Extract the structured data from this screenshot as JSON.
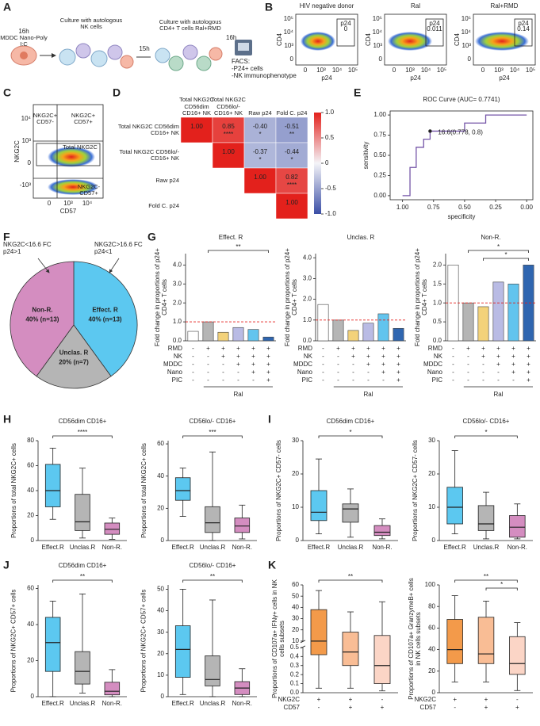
{
  "figure": {
    "panels": [
      "A",
      "B",
      "C",
      "D",
      "E",
      "F",
      "G",
      "H",
      "I",
      "J",
      "K"
    ],
    "diagram": {
      "step1_time": "16h",
      "step1": "MDDC Nano-Poly I:C",
      "step2": "Culture with autologous NK cells",
      "step2_time": "15h",
      "step3": "Culture with autologous CD4+ T cells Ral+RMD",
      "step3_time": "16h",
      "readout": [
        "FACS:",
        "-P24+ cells",
        "-NK immunophenotype"
      ]
    },
    "flow_plots": {
      "x_label": "p24",
      "y_label": "CD4",
      "xticks": [
        "0",
        "10³",
        "10⁴",
        "10⁵"
      ],
      "yticks": [
        "10⁵",
        "10⁴",
        "10³",
        "0"
      ],
      "plots": [
        {
          "title": "HIV negative donor",
          "gate": "p24",
          "value": "0"
        },
        {
          "title": "Ral",
          "gate": "p24",
          "value": "0.011"
        },
        {
          "title": "Ral+RMD",
          "gate": "p24",
          "value": "0.14"
        }
      ]
    },
    "quadrant_plot": {
      "x_label": "CD57",
      "y_label": "NKG2C",
      "quadrants": [
        "NKG2C+ CD57-",
        "NKG2C+ CD57+",
        "Total NKG2C",
        "NKG2C- CD57+"
      ],
      "xticks": [
        "0",
        "10³",
        "10⁴"
      ],
      "yticks": [
        "10⁴",
        "10³",
        "0",
        "-10³"
      ]
    }
  },
  "chart_data": [
    {
      "type": "heatmap",
      "x_labels": [
        "Total NKG2C CD56dim CD16+ NK",
        "Total NKG2C CD56lo/- CD16+ NK",
        "Raw p24",
        "Fold C. p24"
      ],
      "y_labels": [
        "Total NKG2C CD56dim CD16+ NK",
        "Total NKG2C CD56lo/- CD16+ NK",
        "Raw p24",
        "Fold C. p24"
      ],
      "values": [
        [
          1,
          0.85,
          -0.4,
          -0.51
        ],
        [
          null,
          1,
          -0.37,
          -0.44
        ],
        [
          null,
          null,
          1,
          0.82
        ],
        [
          null,
          null,
          null,
          1
        ]
      ],
      "value_labels": [
        [
          "1.00",
          "0.85",
          "-0.40",
          "-0.51"
        ],
        [
          null,
          "1.00",
          "-0.37",
          "-0.44"
        ],
        [
          null,
          null,
          "1.00",
          "0.82"
        ],
        [
          null,
          null,
          null,
          "1.00"
        ]
      ],
      "stars": [
        [
          null,
          "****",
          "*",
          "**"
        ],
        [
          null,
          null,
          "*",
          "*"
        ],
        [
          null,
          null,
          null,
          "****"
        ],
        [
          null,
          null,
          null,
          null
        ]
      ],
      "zlim": [
        -1,
        1
      ],
      "colors": [
        "#3a4ea6",
        "#f4f4f8",
        "#e3211c"
      ],
      "zticks": [
        {
          "value": 1,
          "label": "1.0"
        },
        0.5,
        0,
        -0.5,
        {
          "value": -1,
          "label": "-1.0"
        }
      ]
    },
    {
      "type": "line",
      "title": "ROC Curve (AUC= 0.7741)",
      "x_label": "specificity",
      "y_label": "sensitivity",
      "x": [
        1.0,
        0.94,
        0.94,
        0.89,
        0.89,
        0.83,
        0.83,
        0.778,
        0.778,
        0.5,
        0.5,
        0.33,
        0.33,
        0.0
      ],
      "values": [
        0,
        0,
        0.35,
        0.35,
        0.6,
        0.6,
        0.7,
        0.7,
        0.8,
        0.8,
        0.9,
        0.9,
        1.0,
        1.0
      ],
      "color": "#7556a8",
      "xlim": [
        1.1,
        -0.05
      ],
      "ylim": [
        -0.05,
        1.05
      ],
      "xticks": [
        {
          "value": 1,
          "label": "1.00"
        },
        0.75,
        {
          "value": 0.5,
          "label": "0.50"
        },
        0.25,
        {
          "value": 0,
          "label": "0.00"
        }
      ],
      "yticks": [
        {
          "value": 0,
          "label": "0.00"
        },
        0.25,
        {
          "value": 0.5,
          "label": "0.50"
        },
        0.75,
        {
          "value": 1,
          "label": "1.00"
        }
      ],
      "point": [
        0.778,
        0.8
      ],
      "annotation": "16.6(0.778, 0.8)"
    },
    {
      "type": "pie",
      "categories": [
        "Effect. R",
        "Unclas. R",
        "Non-R."
      ],
      "values": [
        40,
        20,
        40
      ],
      "value_labels": [
        "40% (n=13)",
        "20% (n=7)",
        "40% (n=13)"
      ],
      "colors": [
        "#5cc8f0",
        "#b5b5b5",
        "#d48dc0"
      ],
      "annotations": [
        "NKG2C<16.6 FC p24>1",
        "NKG2C>16.6 FC p24<1"
      ]
    },
    {
      "type": "bar",
      "title": "Effect. R",
      "ylabel": "Fold change in proportions of p24+ CD4+ T cells",
      "values": [
        0.5,
        1.0,
        0.45,
        0.7,
        0.6,
        0.2
      ],
      "colors": [
        "#ffffff",
        "#b5b5b5",
        "#f3d27a",
        "#b9bbe4",
        "#62c4ee",
        "#2f66b0"
      ],
      "ylim": [
        0,
        4.6
      ],
      "yticks": [
        {
          "value": 0,
          "label": "0.0"
        },
        {
          "value": 1,
          "label": "1.0"
        },
        {
          "value": 2,
          "label": "2.0"
        },
        {
          "value": 3,
          "label": "3.0"
        },
        {
          "value": 4,
          "label": "4.0"
        }
      ],
      "reference": 1,
      "conditions": [
        {
          "name": "RMD",
          "signs": [
            "-",
            "+",
            "+",
            "+",
            "+",
            "+"
          ]
        },
        {
          "name": "NK",
          "signs": [
            "-",
            "-",
            "+",
            "+",
            "+",
            "+"
          ]
        },
        {
          "name": "MDDC",
          "signs": [
            "-",
            "-",
            "-",
            "+",
            "+",
            "+"
          ]
        },
        {
          "name": "Nano",
          "signs": [
            "-",
            "-",
            "-",
            "-",
            "+",
            "+"
          ]
        },
        {
          "name": "PIC",
          "signs": [
            "-",
            "-",
            "-",
            "-",
            "-",
            "+"
          ]
        }
      ],
      "footer": "Ral",
      "significance": [
        {
          "label": "**",
          "pair": [
            1,
            5
          ]
        }
      ]
    },
    {
      "type": "bar",
      "title": "Unclas. R",
      "ylabel": "Fold change in proportions of p24+ CD4+ T cells",
      "values": [
        1.75,
        1.0,
        0.5,
        0.85,
        1.3,
        0.6
      ],
      "colors": [
        "#ffffff",
        "#b5b5b5",
        "#f3d27a",
        "#b9bbe4",
        "#62c4ee",
        "#2f66b0"
      ],
      "ylim": [
        0,
        4.2
      ],
      "yticks": [
        {
          "value": 0,
          "label": "0.0"
        },
        {
          "value": 1,
          "label": "1.0"
        },
        {
          "value": 2,
          "label": "2.0"
        },
        {
          "value": 3,
          "label": "3.0"
        },
        {
          "value": 4,
          "label": "4.0"
        }
      ],
      "reference": 1,
      "conditions": [
        {
          "name": "RMD",
          "signs": [
            "-",
            "+",
            "+",
            "+",
            "+",
            "+"
          ]
        },
        {
          "name": "NK",
          "signs": [
            "-",
            "-",
            "+",
            "+",
            "+",
            "+"
          ]
        },
        {
          "name": "MDDC",
          "signs": [
            "-",
            "-",
            "-",
            "+",
            "+",
            "+"
          ]
        },
        {
          "name": "Nano",
          "signs": [
            "-",
            "-",
            "-",
            "-",
            "+",
            "+"
          ]
        },
        {
          "name": "PIC",
          "signs": [
            "-",
            "-",
            "-",
            "-",
            "-",
            "+"
          ]
        }
      ],
      "footer": "Ral",
      "significance": []
    },
    {
      "type": "bar",
      "title": "Non-R.",
      "ylabel": "Fold change in proportions of p24+ CD4+ T cells",
      "values": [
        2.0,
        1.0,
        0.9,
        1.55,
        1.5,
        2.0
      ],
      "colors": [
        "#ffffff",
        "#b5b5b5",
        "#f3d27a",
        "#b9bbe4",
        "#62c4ee",
        "#2f66b0"
      ],
      "ylim": [
        0,
        2.3
      ],
      "yticks": [
        {
          "value": 0,
          "label": "0.0"
        },
        0.5,
        {
          "value": 1,
          "label": "1.0"
        },
        1.5,
        {
          "value": 2,
          "label": "2.0"
        }
      ],
      "reference": 1,
      "conditions": [
        {
          "name": "RMD",
          "signs": [
            "-",
            "+",
            "+",
            "+",
            "+",
            "+"
          ]
        },
        {
          "name": "NK",
          "signs": [
            "-",
            "-",
            "+",
            "+",
            "+",
            "+"
          ]
        },
        {
          "name": "MDDC",
          "signs": [
            "-",
            "-",
            "-",
            "+",
            "+",
            "+"
          ]
        },
        {
          "name": "Nano",
          "signs": [
            "-",
            "-",
            "-",
            "-",
            "+",
            "+"
          ]
        },
        {
          "name": "PIC",
          "signs": [
            "-",
            "-",
            "-",
            "-",
            "-",
            "+"
          ]
        }
      ],
      "footer": "Ral",
      "significance": [
        {
          "label": "*",
          "pair": [
            1,
            5
          ]
        },
        {
          "label": "*",
          "pair": [
            2,
            5
          ]
        }
      ]
    },
    {
      "type": "box",
      "title": "CD56dim CD16+",
      "ylabel": "Proportions of total NKG2C+ cells",
      "categories": [
        "Effect.R",
        "Unclas.R",
        "Non-R."
      ],
      "colors": [
        "#5cc8f0",
        "#b5b5b5",
        "#d48dc0"
      ],
      "boxes": [
        {
          "min": 17,
          "q1": 27,
          "median": 40,
          "q3": 61,
          "max": 74
        },
        {
          "min": 2,
          "q1": 8,
          "median": 15,
          "q3": 37,
          "max": 58
        },
        {
          "min": 1,
          "q1": 5,
          "median": 9,
          "q3": 14,
          "max": 18
        }
      ],
      "ylim": [
        0,
        80
      ],
      "yticks": [
        0,
        20,
        40,
        60,
        80
      ],
      "significance": [
        {
          "label": "****",
          "pair": [
            0,
            2
          ]
        }
      ]
    },
    {
      "type": "box",
      "title": "CD56lo/- CD16+",
      "ylabel": "Proportions of total NKG2C+ cells",
      "categories": [
        "Effect.R",
        "Unclas.R",
        "Non-R."
      ],
      "colors": [
        "#5cc8f0",
        "#b5b5b5",
        "#d48dc0"
      ],
      "boxes": [
        {
          "min": 15,
          "q1": 25,
          "median": 31,
          "q3": 39,
          "max": 45
        },
        {
          "min": 0,
          "q1": 5,
          "median": 11,
          "q3": 21,
          "max": 55
        },
        {
          "min": 1,
          "q1": 5,
          "median": 9,
          "q3": 14,
          "max": 22
        }
      ],
      "ylim": [
        0,
        62
      ],
      "yticks": [
        0,
        20,
        40,
        60
      ],
      "significance": [
        {
          "label": "***",
          "pair": [
            0,
            2
          ]
        }
      ]
    },
    {
      "type": "box",
      "title": "CD56dim CD16+",
      "ylabel": "Proportions of NKG2C+ CD57- cells",
      "categories": [
        "Effect.R",
        "Unclas.R",
        "Non-R."
      ],
      "colors": [
        "#5cc8f0",
        "#b5b5b5",
        "#d48dc0"
      ],
      "boxes": [
        {
          "min": 2,
          "q1": 6,
          "median": 8.5,
          "q3": 15,
          "max": 24.5
        },
        {
          "min": 1,
          "q1": 5.5,
          "median": 9.5,
          "q3": 11,
          "max": 15.5
        },
        {
          "min": 0.5,
          "q1": 1.5,
          "median": 2.5,
          "q3": 4.5,
          "max": 6.5
        }
      ],
      "ylim": [
        0,
        30
      ],
      "yticks": [
        0,
        10,
        20,
        30
      ],
      "significance": [
        {
          "label": "*",
          "pair": [
            0,
            2
          ]
        }
      ]
    },
    {
      "type": "box",
      "title": "CD56lo/- CD16+",
      "ylabel": "Proportions of NKG2C+ CD57- cells",
      "categories": [
        "Effect.R",
        "Unclas.R",
        "Non-R."
      ],
      "colors": [
        "#5cc8f0",
        "#b5b5b5",
        "#d48dc0"
      ],
      "boxes": [
        {
          "min": 2,
          "q1": 5,
          "median": 10,
          "q3": 16,
          "max": 27
        },
        {
          "min": 0.5,
          "q1": 3,
          "median": 5,
          "q3": 10.5,
          "max": 14.5
        },
        {
          "min": 0.5,
          "q1": 1,
          "median": 4,
          "q3": 7.5,
          "max": 11
        }
      ],
      "ylim": [
        0,
        30
      ],
      "yticks": [
        0,
        10,
        20,
        30
      ],
      "significance": [
        {
          "label": "*",
          "pair": [
            0,
            2
          ]
        }
      ]
    },
    {
      "type": "box",
      "title": "CD56dim CD16+",
      "ylabel": "Proportions of NKG2C+ CD57+ cells",
      "categories": [
        "Effect.R",
        "Unclas.R",
        "Non-R."
      ],
      "colors": [
        "#5cc8f0",
        "#b5b5b5",
        "#d48dc0"
      ],
      "boxes": [
        {
          "min": 0,
          "q1": 14,
          "median": 30,
          "q3": 44,
          "max": 53
        },
        {
          "min": 2,
          "q1": 7,
          "median": 14,
          "q3": 25,
          "max": 57
        },
        {
          "min": 0,
          "q1": 1,
          "median": 3,
          "q3": 8,
          "max": 15
        }
      ],
      "ylim": [
        0,
        62
      ],
      "yticks": [
        0,
        20,
        40,
        60
      ],
      "significance": [
        {
          "label": "**",
          "pair": [
            0,
            2
          ]
        }
      ]
    },
    {
      "type": "box",
      "title": "CD56lo/- CD16+",
      "ylabel": "Proportions of NKG2C+ CD57+ cells",
      "categories": [
        "Effect.R",
        "Unclas.R",
        "Non-R."
      ],
      "colors": [
        "#5cc8f0",
        "#b5b5b5",
        "#d48dc0"
      ],
      "boxes": [
        {
          "min": 1,
          "q1": 9,
          "median": 22,
          "q3": 33,
          "max": 50
        },
        {
          "min": 0,
          "q1": 5,
          "median": 8,
          "q3": 19,
          "max": 45
        },
        {
          "min": 0,
          "q1": 1,
          "median": 4,
          "q3": 7,
          "max": 13
        }
      ],
      "ylim": [
        0,
        52
      ],
      "yticks": [
        0,
        10,
        20,
        30,
        40,
        50
      ],
      "significance": [
        {
          "label": "**",
          "pair": [
            0,
            2
          ]
        }
      ]
    },
    {
      "type": "box",
      "ylabel": "Proportions of CD107a+ IFNγ+ cells in NK cells subsets",
      "colors": [
        "#f39a4a",
        "#f9bd95",
        "#fbd5c6"
      ],
      "rows": [
        {
          "name": "NKG2C",
          "signs": [
            "+",
            "+",
            "-"
          ]
        },
        {
          "name": "CD57",
          "signs": [
            "-",
            "+",
            "+"
          ]
        }
      ],
      "boxes": [
        {
          "min": 0.05,
          "q1": 0.42,
          "median": 10,
          "q3": 38,
          "max": 55
        },
        {
          "min": 0.05,
          "q1": 0.3,
          "median": 0.45,
          "q3": 18,
          "max": 36
        },
        {
          "min": 0.02,
          "q1": 0.1,
          "median": 0.3,
          "q3": 15,
          "max": 45
        }
      ],
      "ylim": [
        0,
        60
      ],
      "ybreak": [
        0.5,
        10
      ],
      "yticks": [
        {
          "value": 0,
          "label": "0.0"
        },
        0.1,
        0.2,
        0.3,
        0.4,
        0.5,
        10,
        20,
        30,
        40,
        50,
        60
      ],
      "significance": [
        {
          "label": "**",
          "pair": [
            0,
            2
          ]
        }
      ]
    },
    {
      "type": "box",
      "ylabel": "Proportions of CD107a+ GranzymeB+ cells in NK cells subsets",
      "colors": [
        "#f39a4a",
        "#f9bd95",
        "#fbd5c6"
      ],
      "rows": [
        {
          "name": "NKG2C",
          "signs": [
            "+",
            "+",
            "-"
          ]
        },
        {
          "name": "CD57",
          "signs": [
            "-",
            "+",
            "+"
          ]
        }
      ],
      "boxes": [
        {
          "min": 10,
          "q1": 27,
          "median": 40,
          "q3": 68,
          "max": 90
        },
        {
          "min": 10,
          "q1": 27,
          "median": 36,
          "q3": 70,
          "max": 85
        },
        {
          "min": 2,
          "q1": 17,
          "median": 27,
          "q3": 52,
          "max": 65
        }
      ],
      "ylim": [
        0,
        100
      ],
      "yticks": [
        0,
        20,
        40,
        60,
        80,
        100
      ],
      "significance": [
        {
          "label": "**",
          "pair": [
            0,
            2
          ]
        },
        {
          "label": "*",
          "pair": [
            1,
            2
          ]
        }
      ]
    }
  ]
}
